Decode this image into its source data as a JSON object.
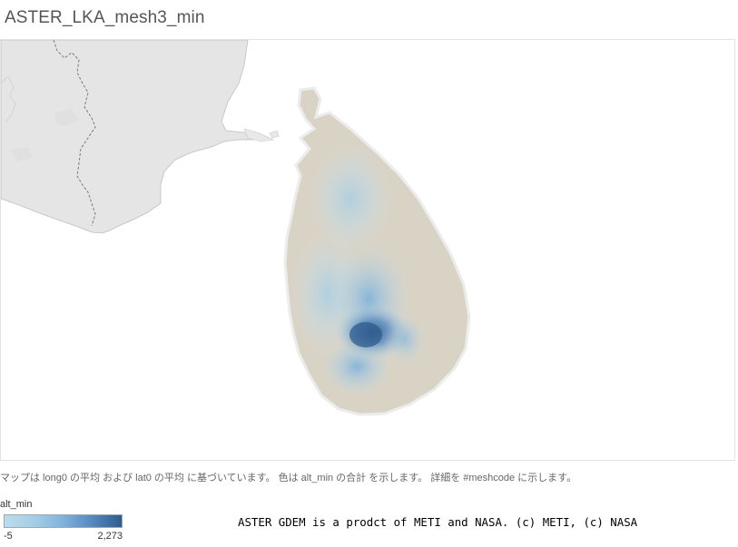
{
  "title": "ASTER_LKA_mesh3_min",
  "caption": "マップは long0 の平均 および lat0 の平均 に基づいています。 色は alt_min の合計 を示します。 詳細を #meshcode に示します。",
  "legend": {
    "title": "alt_min",
    "min_label": "-5",
    "max_label": "2,273",
    "color_low": "#bcdcea",
    "color_high": "#2f5c8e"
  },
  "attribution": "ASTER GDEM is a prodct of METI and NASA. (c) METI, (c) NASA",
  "map": {
    "land_color": "#e5e5e5",
    "island_base_color": "#d9d3c6",
    "border_style": "dashed",
    "regions": [
      "Sri Lanka",
      "India (Tamil Nadu coast)"
    ]
  }
}
